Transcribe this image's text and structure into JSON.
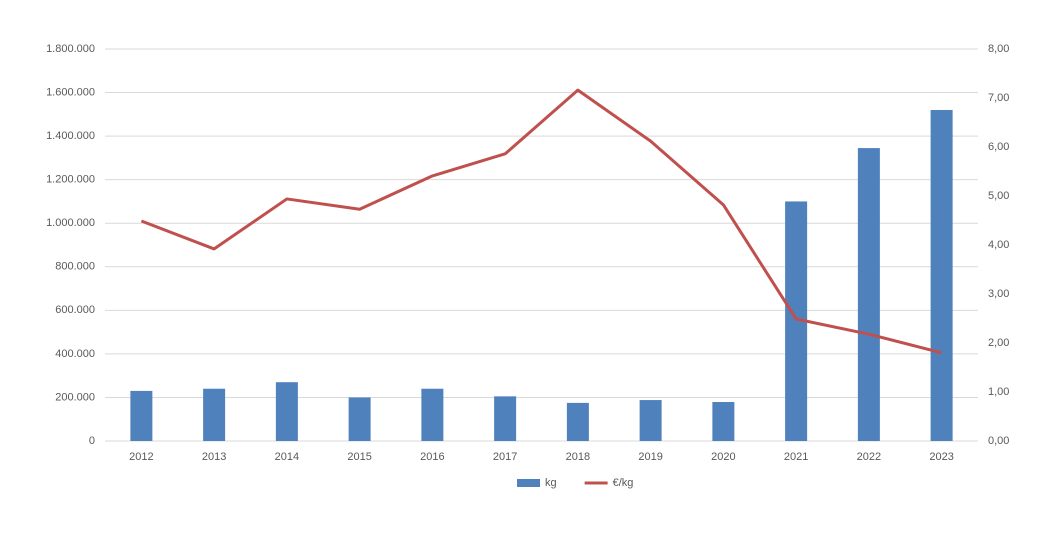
{
  "chart_data": {
    "type": "bar-line",
    "categories": [
      "2012",
      "2013",
      "2014",
      "2015",
      "2016",
      "2017",
      "2018",
      "2019",
      "2020",
      "2021",
      "2022",
      "2023"
    ],
    "series": [
      {
        "name": "kg",
        "type": "bar",
        "color": "#4f81bd",
        "values": [
          230000,
          240000,
          270000,
          200000,
          240000,
          205000,
          175000,
          188000,
          179000,
          1100000,
          1345000,
          1520000
        ]
      },
      {
        "name": "€/kg",
        "type": "line",
        "axis": "y2",
        "color": "#c0504d",
        "values": [
          4.49,
          3.92,
          4.94,
          4.73,
          5.41,
          5.86,
          7.16,
          6.12,
          4.82,
          2.49,
          2.18,
          1.8
        ]
      }
    ],
    "ylim": [
      0,
      1800000
    ],
    "yticks": [
      0,
      {
        "value": 200000,
        "label": "200.000"
      },
      {
        "value": 400000,
        "label": "400.000"
      },
      {
        "value": 600000,
        "label": "600.000"
      },
      {
        "value": 800000,
        "label": "800.000"
      },
      {
        "value": 1000000,
        "label": "1.000.000"
      },
      {
        "value": 1200000,
        "label": "1.200.000"
      },
      {
        "value": 1400000,
        "label": "1.400.000"
      },
      {
        "value": 1600000,
        "label": "1.600.000"
      },
      {
        "value": 1800000,
        "label": "1.800.000"
      }
    ],
    "y2lim": [
      0,
      8
    ],
    "y2ticks": [
      {
        "value": 0,
        "label": "0,00"
      },
      {
        "value": 1,
        "label": "1,00"
      },
      {
        "value": 2,
        "label": "2,00"
      },
      {
        "value": 3,
        "label": "3,00"
      },
      {
        "value": 4,
        "label": "4,00"
      },
      {
        "value": 5,
        "label": "5,00"
      },
      {
        "value": 6,
        "label": "6,00"
      },
      {
        "value": 7,
        "label": "7,00"
      },
      {
        "value": 8,
        "label": "8,00"
      }
    ],
    "grid": true,
    "legend": "bottom"
  }
}
